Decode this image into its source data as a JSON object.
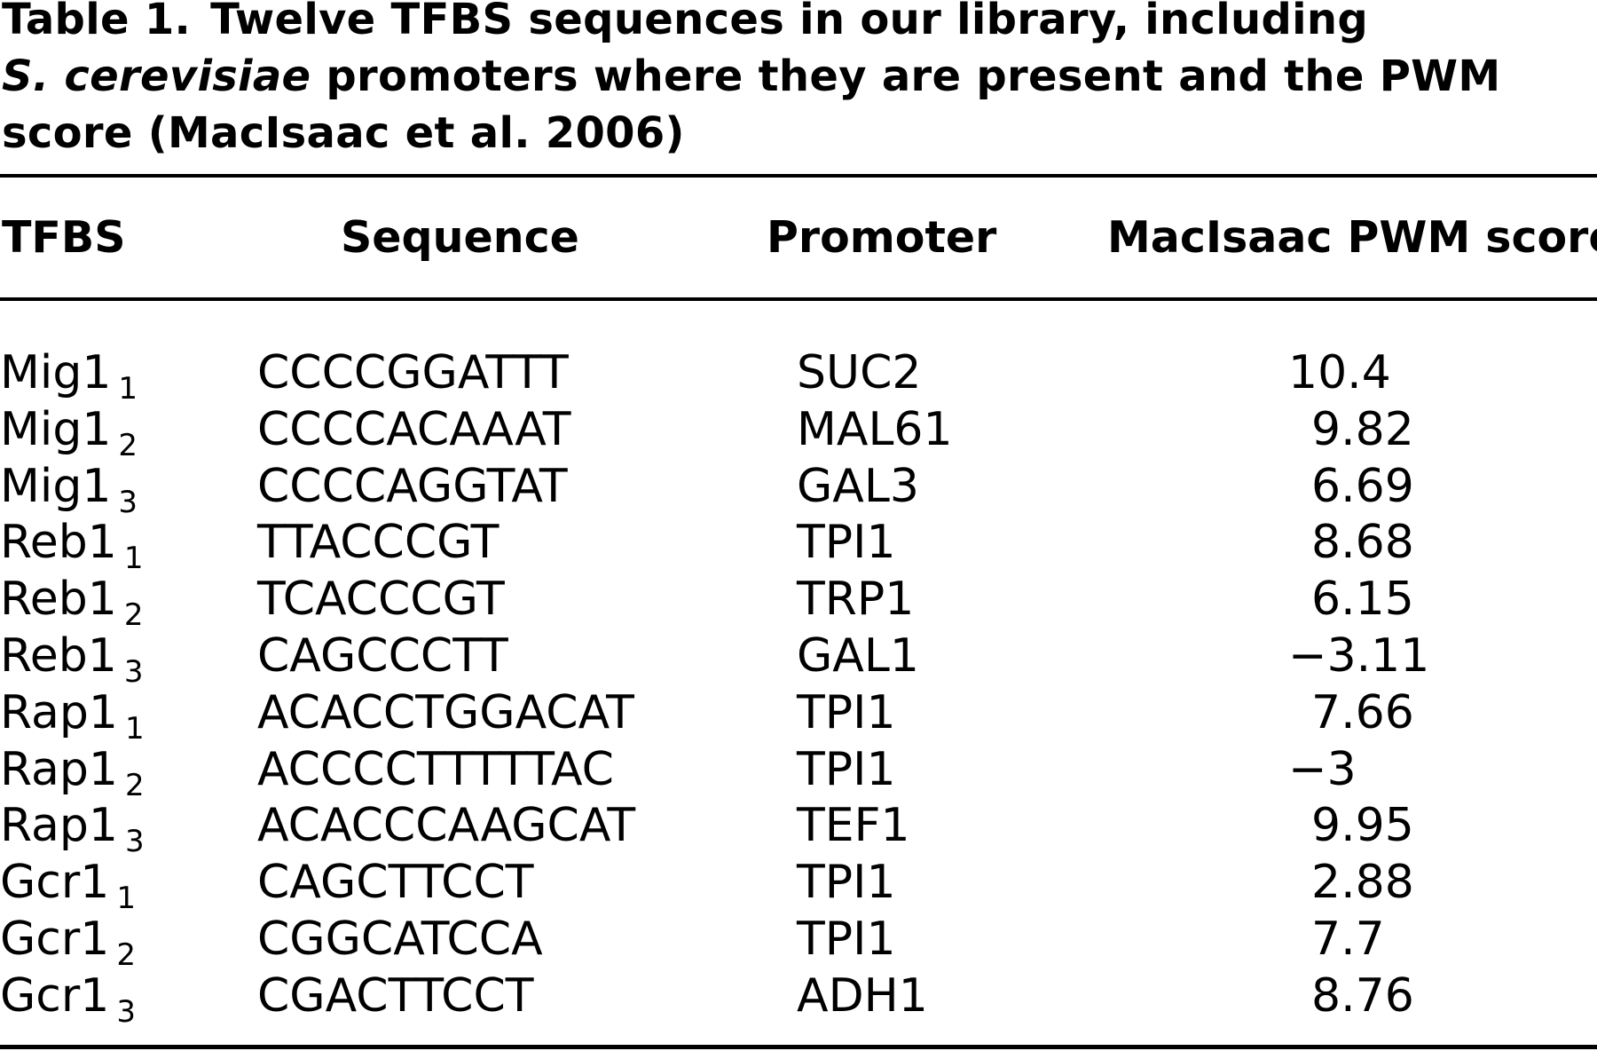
{
  "caption": {
    "label": "Table 1.",
    "text_1": "Twelve TFBS sequences in our library, including",
    "species": "S. cerevisiae",
    "text_2": "promoters where they are present and the PWM score (MacIsaac et al. 2006)"
  },
  "table": {
    "columns": [
      "TFBS",
      "Sequence",
      "Promoter",
      "MacIsaac PWM score"
    ],
    "rows": [
      {
        "tfbs": "Mig1",
        "sub": "1",
        "sequence": "CCCCGGATTT",
        "promoter": "SUC2",
        "score": "10.4"
      },
      {
        "tfbs": "Mig1",
        "sub": "2",
        "sequence": "CCCCACAAAT",
        "promoter": "MAL61",
        "score": " 9.82"
      },
      {
        "tfbs": "Mig1",
        "sub": "3",
        "sequence": "CCCCAGGTAT",
        "promoter": "GAL3",
        "score": " 6.69"
      },
      {
        "tfbs": "Reb1",
        "sub": "1",
        "sequence": "TTACCCGT",
        "promoter": "TPI1",
        "score": " 8.68"
      },
      {
        "tfbs": "Reb1",
        "sub": "2",
        "sequence": "TCACCCGT",
        "promoter": "TRP1",
        "score": " 6.15"
      },
      {
        "tfbs": "Reb1",
        "sub": "3",
        "sequence": "CAGCCCTT",
        "promoter": "GAL1",
        "score": "−3.11"
      },
      {
        "tfbs": "Rap1",
        "sub": "1",
        "sequence": "ACACCTGGACAT",
        "promoter": "TPI1",
        "score": " 7.66"
      },
      {
        "tfbs": "Rap1",
        "sub": "2",
        "sequence": "ACCCCTTTTTAC",
        "promoter": "TPI1",
        "score": "−3"
      },
      {
        "tfbs": "Rap1",
        "sub": "3",
        "sequence": "ACACCCAAGCAT",
        "promoter": "TEF1",
        "score": " 9.95"
      },
      {
        "tfbs": "Gcr1",
        "sub": "1",
        "sequence": "CAGCTTCCT",
        "promoter": "TPI1",
        "score": " 2.88"
      },
      {
        "tfbs": "Gcr1",
        "sub": "2",
        "sequence": "CGGCATCCA",
        "promoter": "TPI1",
        "score": " 7.7"
      },
      {
        "tfbs": "Gcr1",
        "sub": "3",
        "sequence": "CGACTTCCT",
        "promoter": "ADH1",
        "score": " 8.76"
      }
    ]
  }
}
